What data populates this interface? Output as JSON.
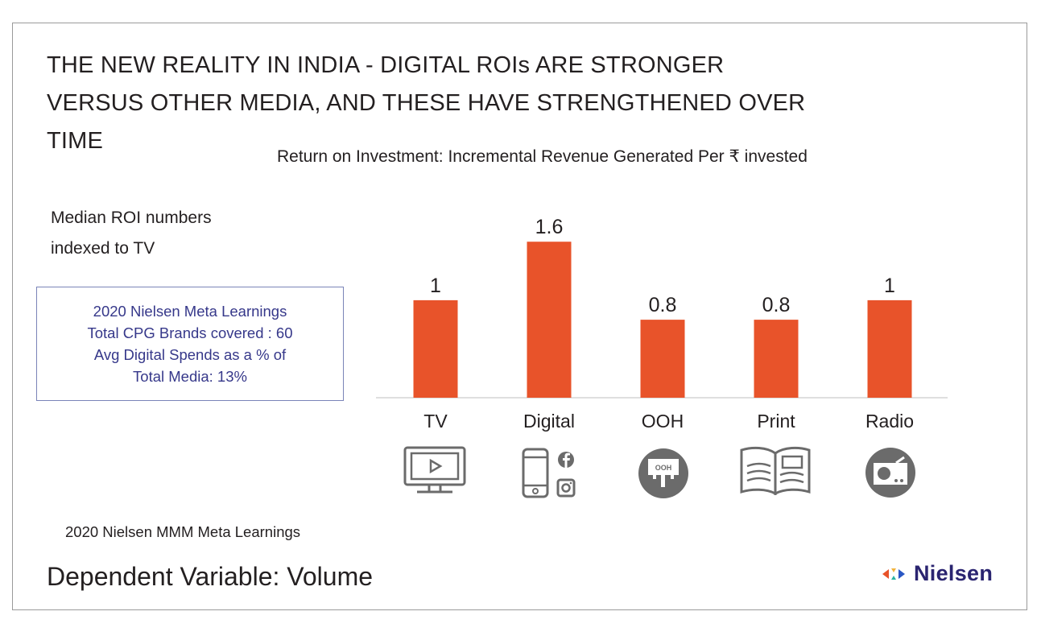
{
  "title": "THE NEW REALITY IN INDIA - DIGITAL ROIs ARE STRONGER\nVERSUS OTHER MEDIA, AND THESE HAVE STRENGTHENED OVER\nTIME",
  "side_note": "Median ROI numbers\nindexed to TV",
  "info_box": {
    "lines": [
      "2020 Nielsen Meta Learnings",
      "Total CPG Brands covered : 60",
      "Avg Digital Spends as a % of",
      "Total Media: 13%"
    ]
  },
  "footnote": "2020 Nielsen MMM Meta Learnings",
  "dependent_variable": "Dependent Variable: Volume",
  "logo_text": "Nielsen",
  "colors": {
    "bar": "#e8532a",
    "info_text": "#36388a",
    "icon": "#6b6b6b",
    "logo": "#2a2470"
  },
  "icons": [
    "tv-screen-play-icon",
    "smartphone-social-icon",
    "ooh-billboard-icon",
    "print-open-book-icon",
    "radio-icon"
  ],
  "chart_data": {
    "type": "bar",
    "title": "Return on Investment: Incremental Revenue Generated Per ₹ invested",
    "categories": [
      "TV",
      "Digital",
      "OOH",
      "Print",
      "Radio"
    ],
    "values": [
      1.0,
      1.6,
      0.8,
      0.8,
      1.0
    ],
    "data_labels": [
      "1",
      "1.6",
      "0.8",
      "0.8",
      "1"
    ],
    "ylim": [
      0,
      1.8
    ],
    "xlabel": "",
    "ylabel": "",
    "grid": false,
    "legend": "none"
  }
}
